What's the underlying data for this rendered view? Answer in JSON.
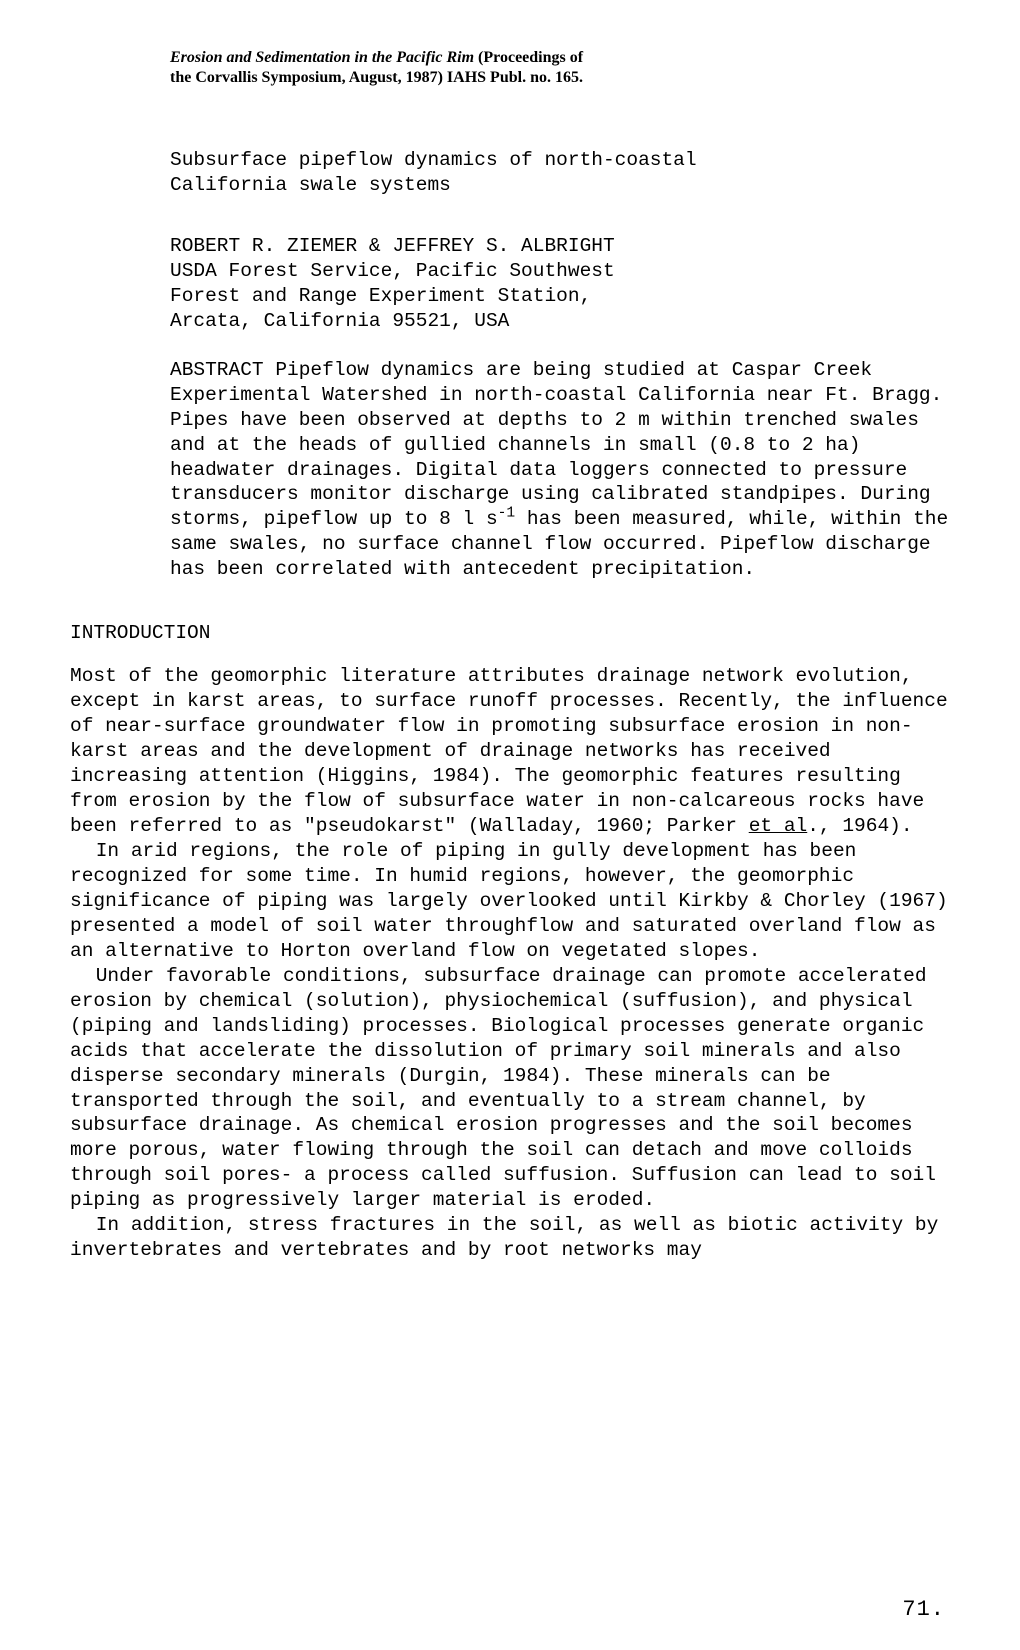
{
  "running_head": {
    "line1_italic": "Erosion and Sedimentation in the Pacific Rim",
    "line1_bold": " (Proceedings of",
    "line2_bold_a": "the Corvallis Symposium, August, 1987)",
    "line2_bold_b": "    IAHS Publ. no. 165."
  },
  "title": {
    "line1": "Subsurface pipeflow dynamics of north-coastal",
    "line2": "California swale systems"
  },
  "authors": {
    "line1": "ROBERT R. ZIEMER & JEFFREY S. ALBRIGHT",
    "line2": "USDA Forest Service, Pacific Southwest",
    "line3": "Forest and Range Experiment Station,",
    "line4": "Arcata,  California 95521, USA"
  },
  "abstract": {
    "label": "ABSTRACT",
    "text_a": "  Pipeflow dynamics are being studied at Caspar Creek Experimental Watershed in north-coastal California near Ft. Bragg.  Pipes have been observed at depths to 2 m within trenched swales and at the heads of  gullied channels in small (0.8 to 2 ha) headwater drainages. Digital data loggers connected to pressure transducers monitor discharge using calibrated standpipes.  During storms, pipeflow up to 8 l s",
    "sup": "-1",
    "text_b": " has been measured, while, within the same swales, no surface channel flow occurred. Pipeflow discharge has been correlated with antecedent precipitation."
  },
  "section_head": "INTRODUCTION",
  "body": {
    "p1_a": "Most of the geomorphic literature attributes drainage network evolution, except in karst areas, to surface runoff processes. Recently, the influence of near-surface groundwater flow in promoting subsurface erosion in non-karst areas and the development of drainage networks has received increasing attention (Higgins, 1984). The geomorphic features resulting from erosion by the flow of subsurface water in non-calcareous rocks have been referred to as \"pseudokarst\" (Walladay, 1960; Parker ",
    "p1_u": "et al",
    "p1_b": "., 1964).",
    "p2": "In arid regions, the role of piping in gully development has been recognized for some time.  In humid regions, however, the geomorphic significance of piping was largely overlooked until Kirkby & Chorley (1967) presented a model of soil water throughflow and saturated overland flow as an alternative to Horton overland flow on vegetated slopes.",
    "p3": "Under favorable conditions, subsurface drainage can promote accelerated erosion by chemical (solution), physiochemical (suffusion), and physical (piping and landsliding) processes. Biological processes generate organic acids that accelerate the dissolution of primary soil minerals and also disperse secondary minerals (Durgin, 1984).  These minerals can be transported through the soil, and eventually to a stream channel, by subsurface drainage. As chemical erosion progresses and the soil becomes more porous, water flowing through the soil can detach and move colloids through soil pores- a process called suffusion.  Suffusion can lead to soil piping as progressively larger material is eroded.",
    "p4": "In addition, stress fractures in the soil, as well as biotic activity by invertebrates and vertebrates and by root networks may"
  },
  "page_number": "71."
}
